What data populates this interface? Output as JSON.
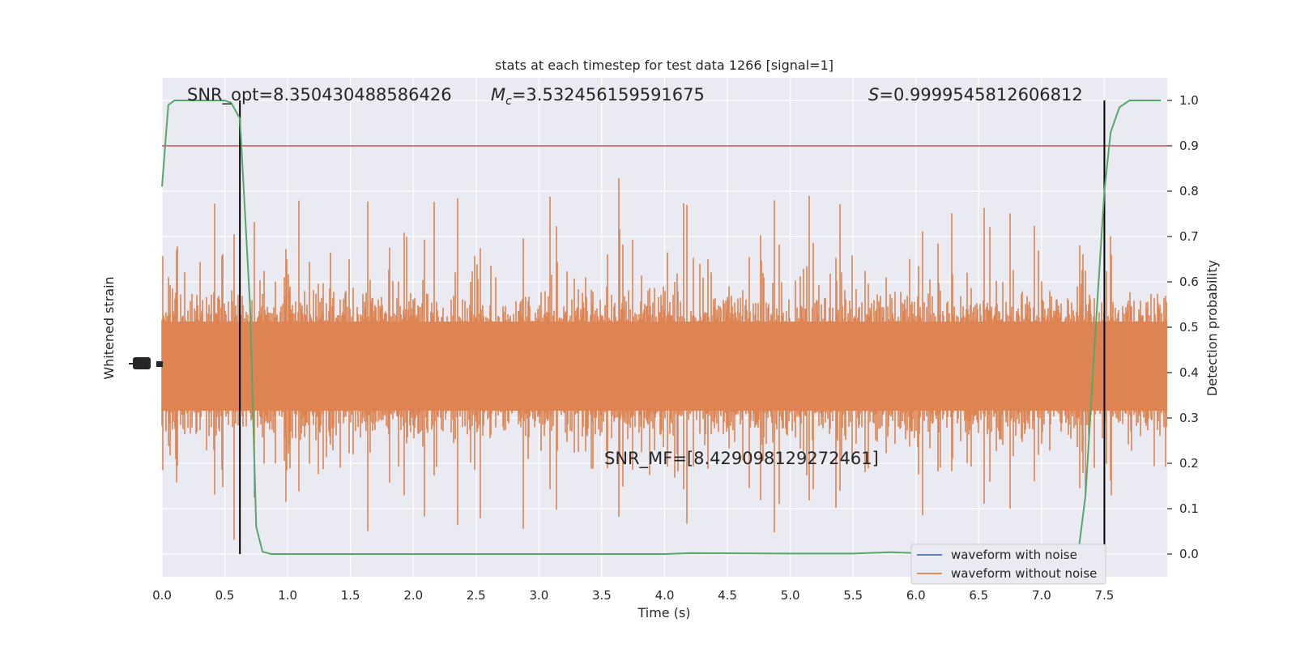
{
  "chart_data": {
    "type": "line",
    "title": "stats at each timestep for test data 1266 [signal=1]",
    "xlabel": "Time (s)",
    "ylabel_left": "Whitened strain",
    "ylabel_right": "Detection probability",
    "xlim": [
      0.0,
      8.0
    ],
    "ylim_right": [
      -0.05,
      1.05
    ],
    "x_ticks": [
      "0.0",
      "0.5",
      "1.0",
      "1.5",
      "2.0",
      "2.5",
      "3.0",
      "3.5",
      "4.0",
      "4.5",
      "5.0",
      "5.5",
      "6.0",
      "6.5",
      "7.0",
      "7.5"
    ],
    "x_tick_values": [
      0.0,
      0.5,
      1.0,
      1.5,
      2.0,
      2.5,
      3.0,
      3.5,
      4.0,
      4.5,
      5.0,
      5.5,
      6.0,
      6.5,
      7.0,
      7.5
    ],
    "y_right_ticks": [
      "0.0",
      "0.1",
      "0.2",
      "0.3",
      "0.4",
      "0.5",
      "0.6",
      "0.7",
      "0.8",
      "0.9",
      "1.0"
    ],
    "y_right_tick_values": [
      0.0,
      0.1,
      0.2,
      0.3,
      0.4,
      0.5,
      0.6,
      0.7,
      0.8,
      0.9,
      1.0
    ],
    "grid": true,
    "legend_position": "lower-right",
    "annotations": {
      "snr_opt": "SNR_opt=8.350430488586426",
      "mc_symbol": "M",
      "mc_sub": "c",
      "mc_value": "=3.532456159591675",
      "s_symbol": "S",
      "s_value": "=0.9999545812606812",
      "snr_mf": "SNR_MF=[8.429098129272461]"
    },
    "threshold": 0.9,
    "vlines": [
      0.62,
      7.5
    ],
    "series": [
      {
        "name": "waveform with noise",
        "color": "#4c72b0",
        "axis": "left",
        "style": "noise"
      },
      {
        "name": "waveform without noise",
        "color": "#dd8452",
        "axis": "left",
        "style": "noise"
      },
      {
        "color": "#55a868",
        "axis": "right",
        "x": [
          0.0,
          0.05,
          0.1,
          0.5,
          0.55,
          0.62,
          0.7,
          0.75,
          0.8,
          0.87,
          1.0,
          2.0,
          3.0,
          4.0,
          4.2,
          5.0,
          5.5,
          5.8,
          6.0,
          6.5,
          7.0,
          7.2,
          7.3,
          7.35,
          7.42,
          7.5,
          7.55,
          7.62,
          7.7,
          7.8,
          7.95
        ],
        "values": [
          0.81,
          0.99,
          1.0,
          1.0,
          0.995,
          0.96,
          0.55,
          0.06,
          0.005,
          0.0,
          0.0,
          0.0,
          0.0,
          0.0,
          0.002,
          0.001,
          0.001,
          0.004,
          0.002,
          0.002,
          0.003,
          0.003,
          0.02,
          0.13,
          0.45,
          0.8,
          0.93,
          0.985,
          1.0,
          1.0,
          1.0
        ]
      }
    ],
    "colors": {
      "threshold_line": "#c44e52",
      "vline": "#000000",
      "plot_bg": "#eaeaf2",
      "grid": "#ffffff"
    }
  }
}
